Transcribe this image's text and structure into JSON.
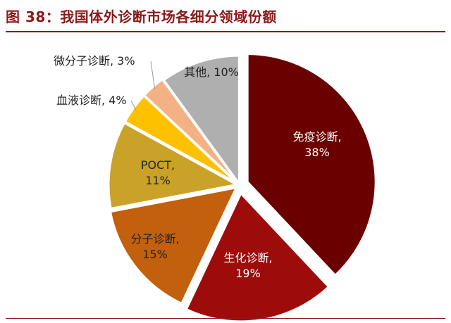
{
  "figure": {
    "title": "图 38：我国体外诊断市场各细分领域份额"
  },
  "chart_data": {
    "type": "pie",
    "title": "我国体外诊断市场各细分领域份额",
    "unit": "%",
    "start_angle_deg": 0,
    "direction": "clockwise",
    "slices": [
      {
        "name": "免疫诊断",
        "value": 38,
        "color": "#6B0000",
        "label_color": "#ffffff",
        "label": [
          "免疫诊断,",
          "38%"
        ]
      },
      {
        "name": "生化诊断",
        "value": 19,
        "color": "#9E0B0B",
        "label_color": "#ffffff",
        "label": [
          "生化诊断,",
          "19%"
        ]
      },
      {
        "name": "分子诊断",
        "value": 15,
        "color": "#C3600E",
        "label_color": "#222222",
        "label": [
          "分子诊断,",
          "15%"
        ]
      },
      {
        "name": "POCT",
        "value": 11,
        "color": "#C9A227",
        "label_color": "#222222",
        "label": [
          "POCT,",
          "11%"
        ]
      },
      {
        "name": "血液诊断",
        "value": 4,
        "color": "#FDC100",
        "label_color": "#222222",
        "label": [
          "血液诊断, 4%"
        ]
      },
      {
        "name": "微分子诊断",
        "value": 3,
        "color": "#F4B183",
        "label_color": "#222222",
        "label": [
          "微分子诊断, 3%"
        ]
      },
      {
        "name": "其他",
        "value": 10,
        "color": "#AFAFAF",
        "label_color": "#222222",
        "label": [
          "其他, 10%"
        ]
      }
    ]
  }
}
